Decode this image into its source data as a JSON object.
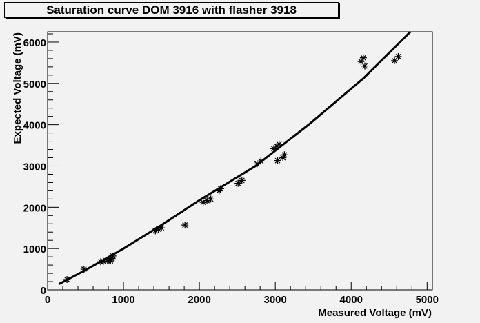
{
  "chart_data": {
    "type": "scatter",
    "title": "Saturation curve DOM 3916 with flasher 3918",
    "xlabel": "Measured Voltage (mV)",
    "ylabel": "Expected Voltage (mV)",
    "xlim": [
      0,
      5070
    ],
    "ylim": [
      0,
      6250
    ],
    "xticks": [
      0,
      1000,
      2000,
      3000,
      4000,
      5000
    ],
    "yticks": [
      0,
      1000,
      2000,
      3000,
      4000,
      5000,
      6000
    ],
    "xtick_labels": [
      "0",
      "1000",
      "2000",
      "3000",
      "4000",
      "5000"
    ],
    "ytick_labels": [
      "0",
      "1000",
      "2000",
      "3000",
      "4000",
      "5000",
      "6000"
    ],
    "grid": false,
    "marker": "asterisk",
    "points": [
      [
        255,
        250
      ],
      [
        480,
        500
      ],
      [
        700,
        680
      ],
      [
        735,
        690
      ],
      [
        790,
        700
      ],
      [
        820,
        730
      ],
      [
        830,
        700
      ],
      [
        850,
        760
      ],
      [
        860,
        820
      ],
      [
        1420,
        1430
      ],
      [
        1460,
        1470
      ],
      [
        1500,
        1500
      ],
      [
        1810,
        1570
      ],
      [
        2050,
        2120
      ],
      [
        2100,
        2160
      ],
      [
        2150,
        2200
      ],
      [
        2260,
        2400
      ],
      [
        2280,
        2450
      ],
      [
        2510,
        2580
      ],
      [
        2560,
        2650
      ],
      [
        2760,
        3050
      ],
      [
        2810,
        3120
      ],
      [
        2980,
        3420
      ],
      [
        3020,
        3480
      ],
      [
        3050,
        3530
      ],
      [
        3030,
        3130
      ],
      [
        3100,
        3200
      ],
      [
        3120,
        3270
      ],
      [
        4130,
        5530
      ],
      [
        4160,
        5620
      ],
      [
        4180,
        5420
      ],
      [
        4570,
        5550
      ],
      [
        4620,
        5650
      ]
    ],
    "fit_curve": [
      [
        150,
        140
      ],
      [
        500,
        480
      ],
      [
        1000,
        1000
      ],
      [
        1500,
        1570
      ],
      [
        2000,
        2170
      ],
      [
        2740,
        3000
      ],
      [
        3460,
        4030
      ],
      [
        4160,
        5120
      ],
      [
        4780,
        6250
      ]
    ]
  }
}
